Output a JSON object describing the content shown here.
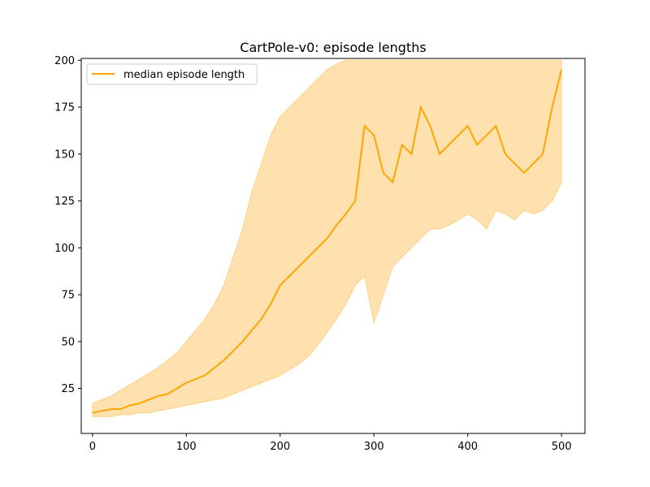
{
  "chart_data": {
    "type": "line",
    "title": "CartPole-v0: episode lengths",
    "xlabel": "",
    "ylabel": "",
    "xlim": [
      -12,
      525
    ],
    "ylim": [
      1,
      201
    ],
    "xticks": [
      0,
      100,
      200,
      300,
      400,
      500
    ],
    "yticks": [
      25,
      50,
      75,
      100,
      125,
      150,
      175,
      200
    ],
    "grid": false,
    "legend_position": "top-left",
    "colors": {
      "median": "#ffa500",
      "band_fill": "#ffe1b0",
      "band_edge": "#ffd080"
    },
    "series": [
      {
        "name": "median episode length",
        "role": "median",
        "x": [
          0,
          10,
          20,
          30,
          40,
          50,
          60,
          70,
          80,
          90,
          100,
          110,
          120,
          130,
          140,
          150,
          160,
          170,
          180,
          190,
          200,
          210,
          220,
          230,
          240,
          250,
          260,
          270,
          280,
          290,
          300,
          310,
          320,
          330,
          340,
          350,
          360,
          370,
          380,
          390,
          400,
          410,
          420,
          430,
          440,
          450,
          460,
          470,
          480,
          490,
          500
        ],
        "y": [
          12,
          13,
          14,
          14,
          16,
          17,
          19,
          21,
          22,
          25,
          28,
          30,
          32,
          36,
          40,
          45,
          50,
          56,
          62,
          70,
          80,
          85,
          90,
          95,
          100,
          105,
          112,
          118,
          125,
          165,
          160,
          140,
          135,
          155,
          150,
          175,
          165,
          150,
          155,
          160,
          165,
          155,
          160,
          165,
          150,
          145,
          140,
          145,
          150,
          175,
          195
        ]
      },
      {
        "name": "",
        "role": "band_upper",
        "x": [
          0,
          10,
          20,
          30,
          40,
          50,
          60,
          70,
          80,
          90,
          100,
          110,
          120,
          130,
          140,
          150,
          160,
          170,
          180,
          190,
          200,
          210,
          220,
          230,
          240,
          250,
          260,
          270,
          280,
          290,
          300,
          310,
          320,
          330,
          340,
          350,
          360,
          370,
          380,
          390,
          400,
          410,
          420,
          430,
          440,
          450,
          460,
          470,
          480,
          490,
          500
        ],
        "y": [
          17,
          19,
          21,
          24,
          27,
          30,
          33,
          36,
          40,
          44,
          50,
          56,
          62,
          70,
          80,
          95,
          110,
          130,
          145,
          160,
          170,
          175,
          180,
          185,
          190,
          195,
          198,
          200,
          200,
          200,
          200,
          200,
          200,
          200,
          200,
          200,
          200,
          200,
          200,
          200,
          200,
          200,
          200,
          200,
          200,
          200,
          200,
          200,
          200,
          200,
          200
        ]
      },
      {
        "name": "",
        "role": "band_lower",
        "x": [
          0,
          10,
          20,
          30,
          40,
          50,
          60,
          70,
          80,
          90,
          100,
          110,
          120,
          130,
          140,
          150,
          160,
          170,
          180,
          190,
          200,
          210,
          220,
          230,
          240,
          250,
          260,
          270,
          280,
          290,
          300,
          310,
          320,
          330,
          340,
          350,
          360,
          370,
          380,
          390,
          400,
          410,
          420,
          430,
          440,
          450,
          460,
          470,
          480,
          490,
          500
        ],
        "y": [
          10,
          10,
          10,
          11,
          11,
          12,
          12,
          13,
          14,
          15,
          16,
          17,
          18,
          19,
          20,
          22,
          24,
          26,
          28,
          30,
          32,
          35,
          38,
          42,
          48,
          55,
          62,
          70,
          80,
          85,
          60,
          75,
          90,
          95,
          100,
          105,
          110,
          110,
          112,
          115,
          118,
          115,
          110,
          120,
          118,
          115,
          120,
          118,
          120,
          125,
          135
        ]
      }
    ]
  }
}
